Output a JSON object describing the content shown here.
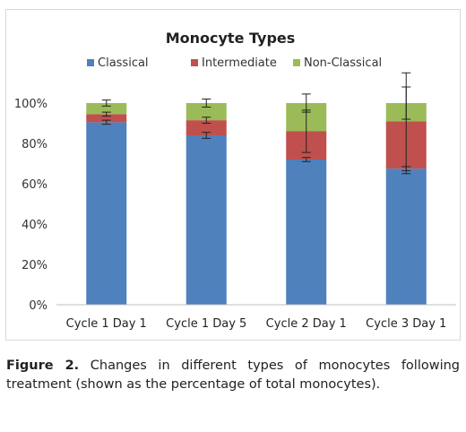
{
  "chart_data": {
    "type": "bar",
    "stacked": true,
    "title": "Monocyte Types",
    "categories": [
      "Cycle 1 Day 1",
      "Cycle 1 Day 5",
      "Cycle 2 Day 1",
      "Cycle 3 Day 1"
    ],
    "series": [
      {
        "name": "Classical",
        "color": "#4f81bd",
        "values": [
          90.5,
          84,
          72,
          67.5
        ],
        "error": [
          1.0,
          1.5,
          1.0,
          1.0
        ]
      },
      {
        "name": "Intermediate",
        "color": "#c0504d",
        "values": [
          4,
          7.5,
          14,
          23.5
        ],
        "error": [
          1.0,
          1.5,
          10.5,
          26.0
        ]
      },
      {
        "name": "Non-Classical",
        "color": "#9bbb59",
        "values": [
          5.5,
          8.5,
          14,
          9
        ],
        "error": [
          1.5,
          2.0,
          4.5,
          8.0
        ]
      }
    ],
    "ylim": [
      0,
      100
    ],
    "yticks": [
      "0%",
      "20%",
      "40%",
      "60%",
      "80%",
      "100%"
    ],
    "legend_position": "top",
    "grid": false
  },
  "caption": {
    "label": "Figure 2.",
    "text": "Changes in different types of monocytes following treatment (shown as the percentage of total monocytes)."
  }
}
